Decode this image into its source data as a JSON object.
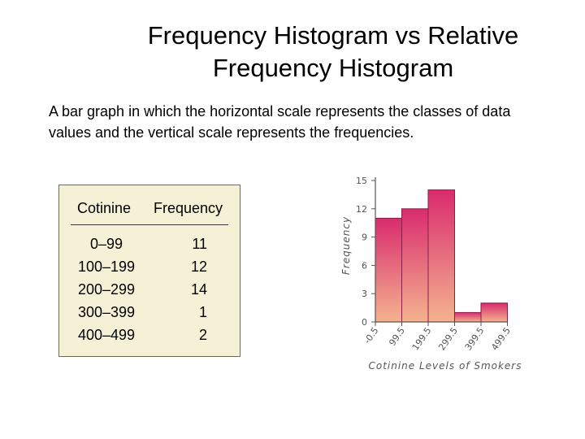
{
  "slide": {
    "title_line1": "Frequency Histogram vs Relative",
    "title_line2": "Frequency Histogram",
    "body": "A bar graph in which the horizontal scale represents the classes of data values and the vertical scale represents the frequencies."
  },
  "table": {
    "headers": [
      "Cotinine",
      "Frequency"
    ],
    "rows": [
      {
        "cls": "0–99",
        "freq": "11"
      },
      {
        "cls": "100–199",
        "freq": "12"
      },
      {
        "cls": "200–299",
        "freq": "14"
      },
      {
        "cls": "300–399",
        "freq": "1"
      },
      {
        "cls": "400–499",
        "freq": "2"
      }
    ]
  },
  "chart_data": {
    "type": "bar",
    "title": "",
    "xlabel": "Cotinine Levels of Smokers",
    "ylabel": "Frequency",
    "ylim": [
      0,
      15
    ],
    "yticks": [
      0,
      3,
      6,
      9,
      12,
      15
    ],
    "boundaries": [
      "-0.5",
      "99.5",
      "199.5",
      "299.5",
      "399.5",
      "499.5"
    ],
    "values": [
      11,
      12,
      14,
      1,
      2
    ],
    "grid": false,
    "colors": {
      "bar_top": "#d92b6e",
      "bar_bottom": "#f4b38f",
      "axis": "#555555"
    }
  }
}
